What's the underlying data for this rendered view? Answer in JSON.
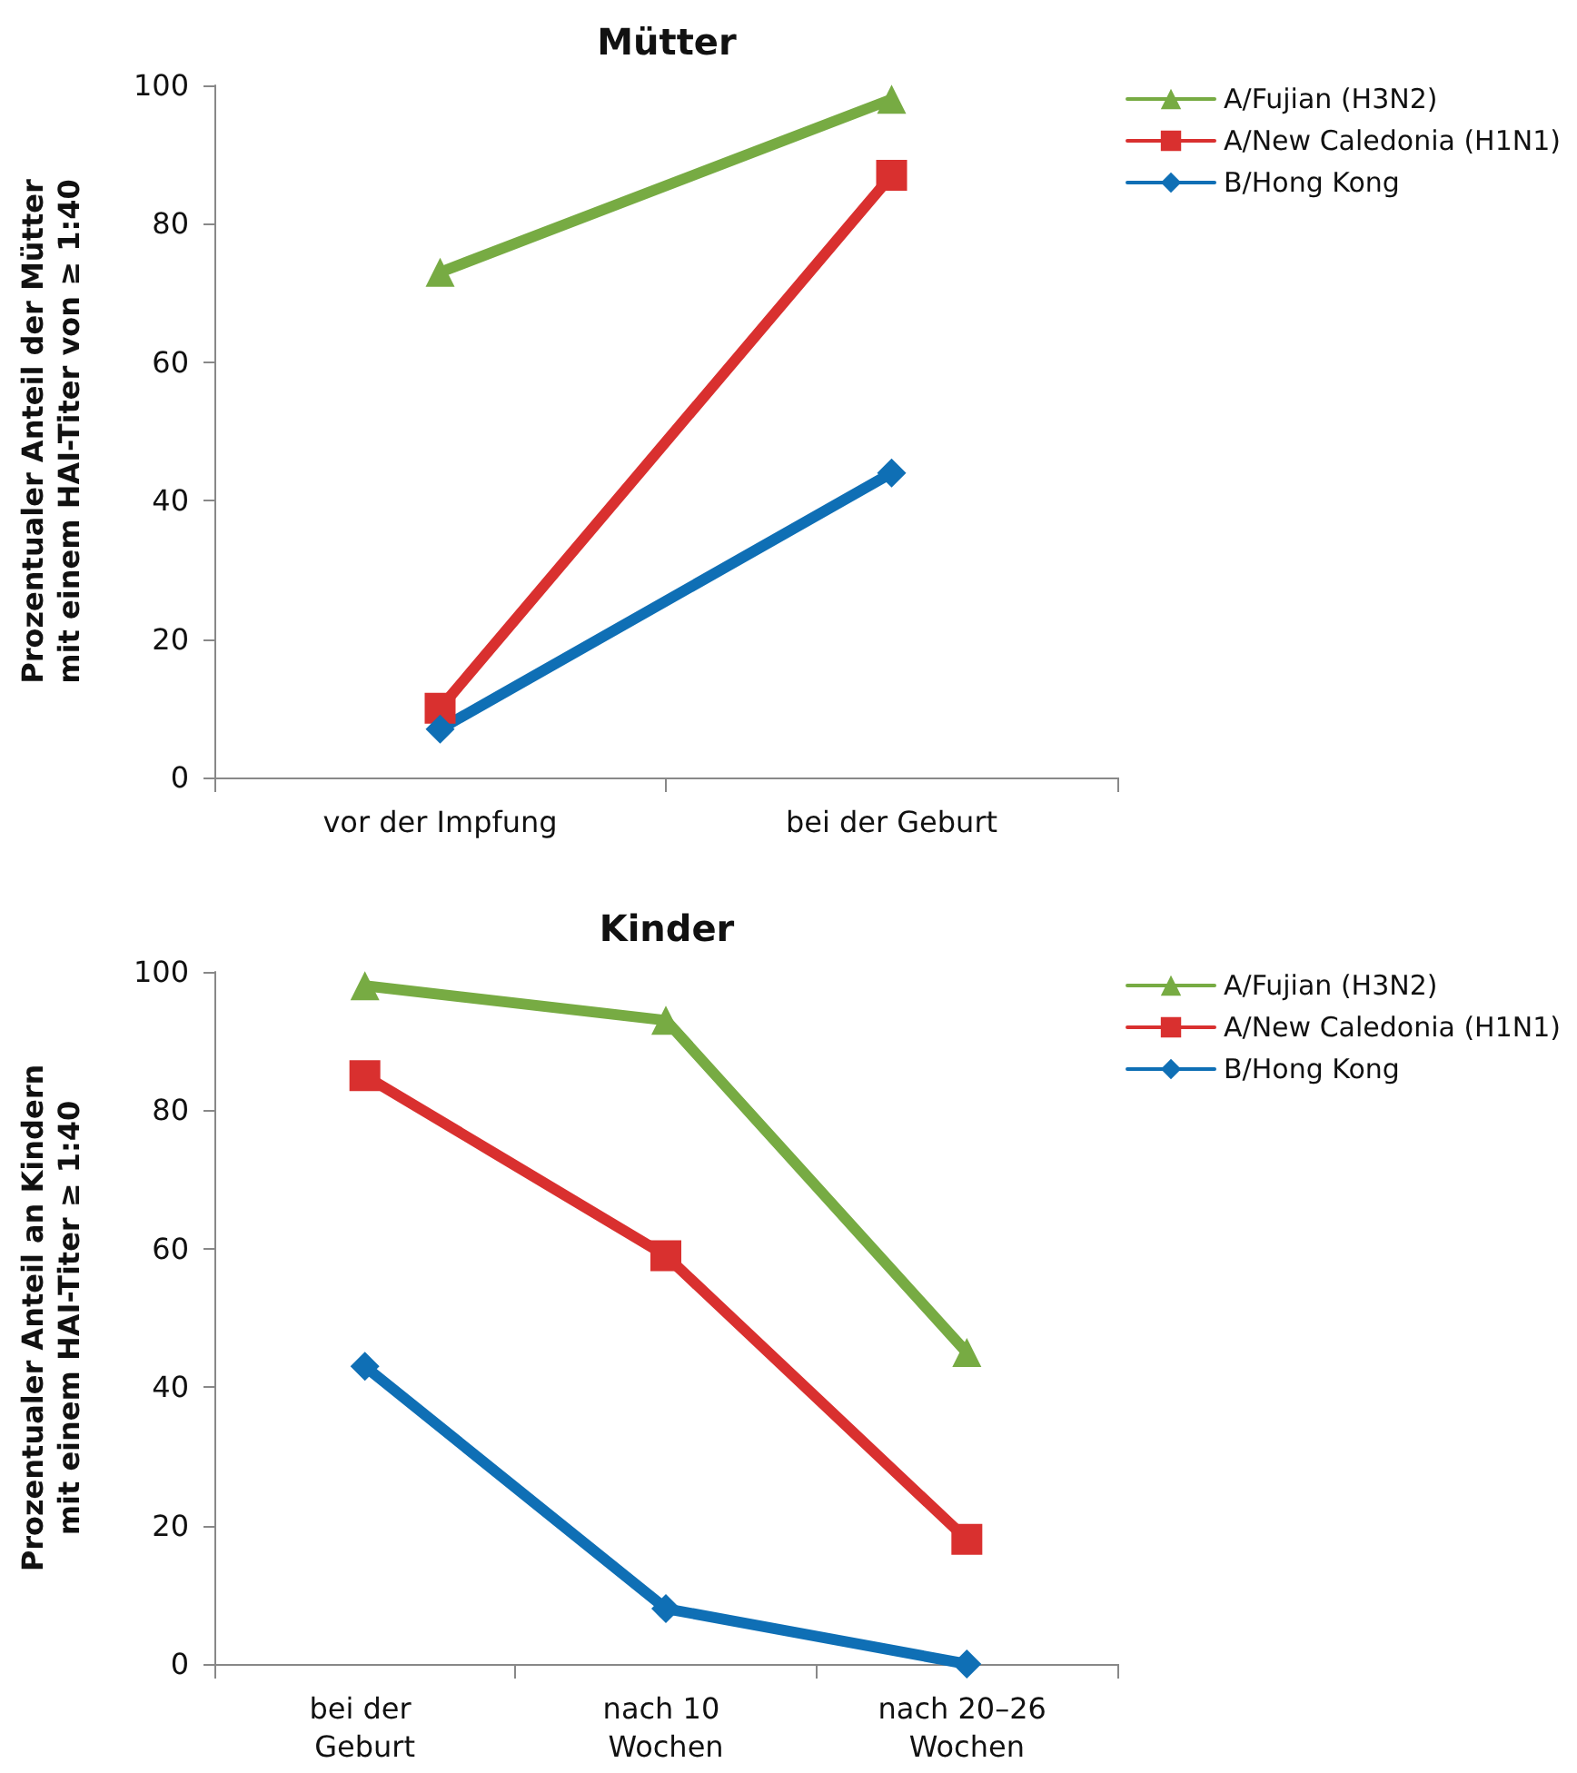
{
  "chart_data": [
    {
      "type": "line",
      "title": "Mütter",
      "ylabel": "Prozentualer Anteil der Mütter\nmit einem HAI-Titer von ≥ 1:40",
      "categories": [
        "vor der Impfung",
        "bei der Geburt"
      ],
      "ylim": [
        0,
        100
      ],
      "yticks": [
        0,
        20,
        40,
        60,
        80,
        100
      ],
      "grid": false,
      "legend": "right",
      "series": [
        {
          "name": "A/Fujian (H3N2)",
          "color": "#77ab43",
          "marker": "triangle",
          "values": [
            73,
            98
          ]
        },
        {
          "name": "A/New Caledonia (H1N1)",
          "color": "#d9302f",
          "marker": "square",
          "values": [
            10,
            87
          ]
        },
        {
          "name": "B/Hong Kong",
          "color": "#0f6fb5",
          "marker": "diamond",
          "values": [
            7,
            44
          ]
        }
      ]
    },
    {
      "type": "line",
      "title": "Kinder",
      "ylabel": "Prozentualer Anteil an Kindern\nmit einem HAI-Titer ≥ 1:40",
      "categories": [
        "bei der Geburt",
        "nach 10 Wochen",
        "nach 20–26 Wochen"
      ],
      "ylim": [
        0,
        100
      ],
      "yticks": [
        0,
        20,
        40,
        60,
        80,
        100
      ],
      "grid": false,
      "legend": "right",
      "series": [
        {
          "name": "A/Fujian (H3N2)",
          "color": "#77ab43",
          "marker": "triangle",
          "values": [
            98,
            93,
            45
          ]
        },
        {
          "name": "A/New Caledonia (H1N1)",
          "color": "#d9302f",
          "marker": "square",
          "values": [
            85,
            59,
            18
          ]
        },
        {
          "name": "B/Hong Kong",
          "color": "#0f6fb5",
          "marker": "diamond",
          "values": [
            43,
            8,
            0
          ]
        }
      ]
    }
  ]
}
